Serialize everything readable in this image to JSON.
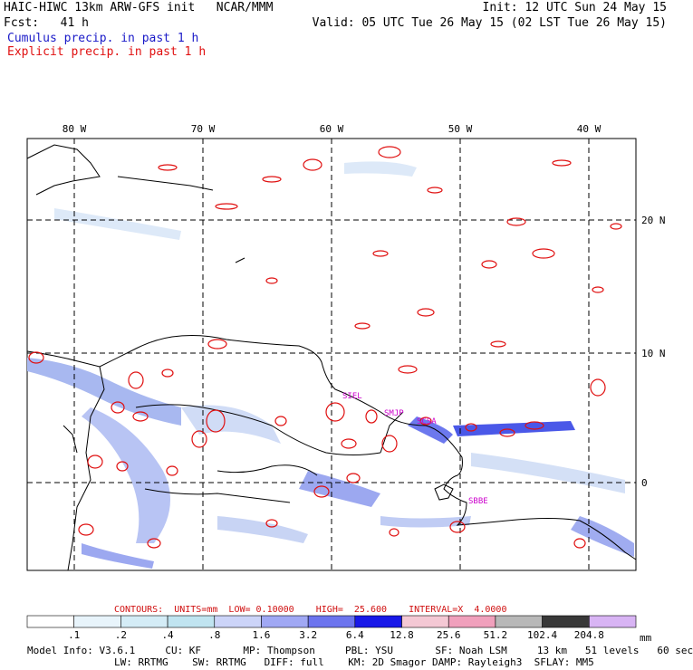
{
  "header": {
    "title": "HAIC-HIWC 13km ARW-GFS init   NCAR/MMM",
    "init": "Init: 12 UTC Sun 24 May 15",
    "fcst_label": "Fcst:   41 h",
    "valid": "Valid: 05 UTC Tue 26 May 15 (02 LST Tue 26 May 15)",
    "legend_cumulus": "Cumulus precip. in past 1 h",
    "legend_explicit": "Explicit precip. in past 1 h"
  },
  "map": {
    "lon_labels": [
      "80 W",
      "70 W",
      "60 W",
      "50 W",
      "40 W"
    ],
    "lat_labels": [
      "20 N",
      "10 N",
      "0"
    ],
    "stations": [
      "SIEL",
      "SMJP",
      "SCSA",
      "SBBE"
    ]
  },
  "contours_line": "CONTOURS:  UNITS=mm  LOW= 0.10000    HIGH=  25.600    INTERVAL=X  4.0000",
  "colorbar": {
    "unit": "mm",
    "labels": [
      ".1",
      ".2",
      ".4",
      ".8",
      "1.6",
      "3.2",
      "6.4",
      "12.8",
      "25.6",
      "51.2",
      "102.4",
      "204.8"
    ],
    "colors": [
      "#ffffff",
      "#e8f4fb",
      "#d4ecf6",
      "#c0e4f0",
      "#ccd4f8",
      "#a0a8f4",
      "#6c74ee",
      "#1818e8",
      "#f4c8d4",
      "#f0a0bc",
      "#b8b8b8",
      "#383838",
      "#d8b4f4"
    ]
  },
  "model_info": {
    "line1": "Model Info: V3.6.1     CU: KF       MP: Thompson     PBL: YSU       SF: Noah LSM     13 km   51 levels   60 sec",
    "line2": "LW: RRTMG    SW: RRTMG   DIFF: full    KM: 2D Smagor DAMP: Rayleigh3  SFLAY: MM5"
  },
  "colors": {
    "cumulus": "#1a1ac8",
    "explicit": "#e01010",
    "station": "#cc00cc"
  }
}
